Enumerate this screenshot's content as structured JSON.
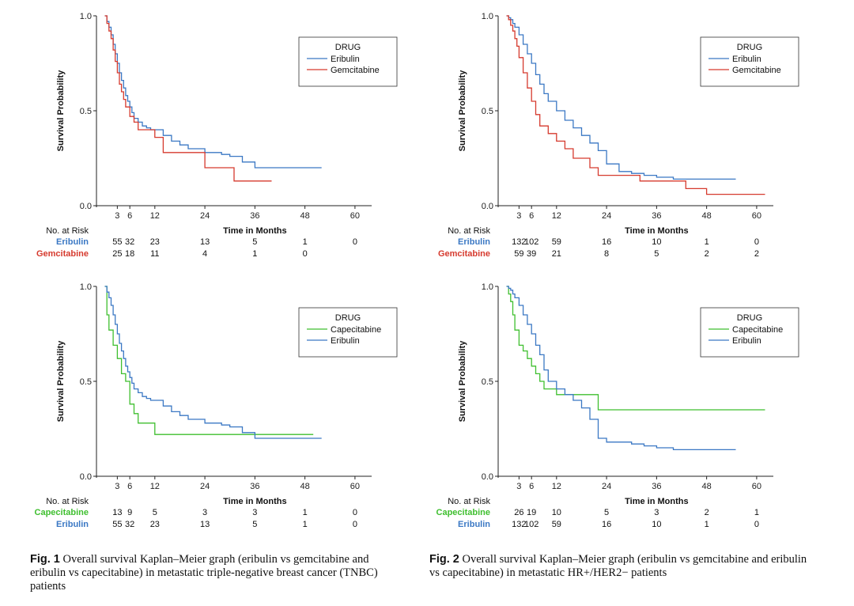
{
  "chart_data": [
    {
      "type": "line",
      "step": true,
      "ylabel": "Survival Probability",
      "xlabel": "Time in Months",
      "xticks": [
        "3",
        "6",
        "12",
        "24",
        "36",
        "48",
        "60"
      ],
      "yticks": [
        "0.0",
        "0.5",
        "1.0"
      ],
      "xlim": [
        0,
        60
      ],
      "ylim": [
        0,
        1
      ],
      "grid": false,
      "legend_position": "top-right",
      "legend_title": "DRUG",
      "series": [
        {
          "name": "Eribulin",
          "color": "#3b78c4",
          "x": [
            0,
            0.5,
            1,
            1.5,
            2,
            2.5,
            3,
            3.5,
            4,
            4.5,
            5,
            5.5,
            6,
            6.5,
            7,
            8,
            9,
            10,
            11,
            12,
            14,
            16,
            18,
            20,
            24,
            28,
            30,
            33,
            36,
            40,
            46,
            52
          ],
          "y": [
            1,
            0.97,
            0.94,
            0.9,
            0.85,
            0.8,
            0.75,
            0.7,
            0.66,
            0.62,
            0.58,
            0.55,
            0.52,
            0.49,
            0.46,
            0.44,
            0.42,
            0.41,
            0.4,
            0.4,
            0.37,
            0.34,
            0.32,
            0.3,
            0.28,
            0.27,
            0.26,
            0.23,
            0.2,
            0.2,
            0.2,
            0.2
          ]
        },
        {
          "name": "Gemcitabine",
          "color": "#d63a2e",
          "x": [
            0,
            0.5,
            1,
            1.5,
            2,
            2.5,
            3,
            3.5,
            4,
            4.5,
            5,
            6,
            7,
            8,
            9,
            12,
            14,
            24,
            28,
            30,
            31,
            36,
            40
          ],
          "y": [
            1,
            0.96,
            0.92,
            0.88,
            0.82,
            0.76,
            0.7,
            0.64,
            0.6,
            0.56,
            0.52,
            0.47,
            0.44,
            0.4,
            0.4,
            0.36,
            0.28,
            0.2,
            0.2,
            0.2,
            0.13,
            0.13,
            0.13
          ]
        }
      ],
      "risk_table": {
        "header": "No. at Risk",
        "rows": [
          {
            "label": "Eribulin",
            "color": "#3b78c4",
            "values": [
              "55",
              "32",
              "23",
              "13",
              "5",
              "1",
              "0"
            ]
          },
          {
            "label": "Gemcitabine",
            "color": "#d63a2e",
            "values": [
              "25",
              "18",
              "11",
              "4",
              "1",
              "0",
              ""
            ]
          }
        ]
      }
    },
    {
      "type": "line",
      "step": true,
      "ylabel": "Survival Probability",
      "xlabel": "Time in Months",
      "xticks": [
        "3",
        "6",
        "12",
        "24",
        "36",
        "48",
        "60"
      ],
      "yticks": [
        "0.0",
        "0.5",
        "1.0"
      ],
      "xlim": [
        0,
        60
      ],
      "ylim": [
        0,
        1
      ],
      "grid": false,
      "legend_position": "top-right",
      "legend_title": "DRUG",
      "series": [
        {
          "name": "Eribulin",
          "color": "#3b78c4",
          "x": [
            0,
            0.5,
            1,
            1.5,
            2,
            3,
            4,
            5,
            6,
            7,
            8,
            9,
            10,
            12,
            14,
            16,
            18,
            20,
            22,
            24,
            27,
            30,
            33,
            36,
            40,
            45,
            50,
            55
          ],
          "y": [
            1,
            0.99,
            0.98,
            0.96,
            0.94,
            0.9,
            0.85,
            0.8,
            0.75,
            0.69,
            0.64,
            0.59,
            0.55,
            0.5,
            0.45,
            0.41,
            0.37,
            0.33,
            0.29,
            0.22,
            0.18,
            0.17,
            0.16,
            0.15,
            0.14,
            0.14,
            0.14,
            0.14
          ]
        },
        {
          "name": "Gemcitabine",
          "color": "#d63a2e",
          "x": [
            0,
            0.5,
            1,
            1.5,
            2,
            2.5,
            3,
            4,
            5,
            6,
            7,
            8,
            10,
            12,
            14,
            16,
            18,
            20,
            22,
            24,
            30,
            32,
            36,
            40,
            43,
            48,
            55,
            62
          ],
          "y": [
            1,
            0.98,
            0.95,
            0.92,
            0.88,
            0.84,
            0.78,
            0.7,
            0.62,
            0.55,
            0.48,
            0.42,
            0.38,
            0.34,
            0.3,
            0.25,
            0.25,
            0.2,
            0.16,
            0.16,
            0.16,
            0.13,
            0.13,
            0.13,
            0.09,
            0.06,
            0.06,
            0.06
          ]
        }
      ],
      "risk_table": {
        "header": "No. at Risk",
        "rows": [
          {
            "label": "Eribulin",
            "color": "#3b78c4",
            "values": [
              "132",
              "102",
              "59",
              "16",
              "10",
              "1",
              "0"
            ]
          },
          {
            "label": "Gemcitabine",
            "color": "#d63a2e",
            "values": [
              "59",
              "39",
              "21",
              "8",
              "5",
              "2",
              "2"
            ]
          }
        ]
      }
    },
    {
      "type": "line",
      "step": true,
      "ylabel": "Survival Probability",
      "xlabel": "Time in Months",
      "xticks": [
        "3",
        "6",
        "12",
        "24",
        "36",
        "48",
        "60"
      ],
      "yticks": [
        "0.0",
        "0.5",
        "1.0"
      ],
      "xlim": [
        0,
        60
      ],
      "ylim": [
        0,
        1
      ],
      "grid": false,
      "legend_position": "top-right",
      "legend_title": "DRUG",
      "series": [
        {
          "name": "Capecitabine",
          "color": "#3fbf2f",
          "x": [
            0,
            0.5,
            1,
            2,
            3,
            4,
            5,
            6,
            7,
            8,
            12,
            14,
            20,
            36,
            40,
            48,
            50
          ],
          "y": [
            1,
            0.85,
            0.77,
            0.69,
            0.62,
            0.54,
            0.5,
            0.38,
            0.33,
            0.28,
            0.22,
            0.22,
            0.22,
            0.22,
            0.22,
            0.22,
            0.22
          ]
        },
        {
          "name": "Eribulin",
          "color": "#3b78c4",
          "x": [
            0,
            0.5,
            1,
            1.5,
            2,
            2.5,
            3,
            3.5,
            4,
            4.5,
            5,
            5.5,
            6,
            6.5,
            7,
            8,
            9,
            10,
            11,
            12,
            14,
            16,
            18,
            20,
            24,
            28,
            30,
            33,
            36,
            40,
            46,
            52
          ],
          "y": [
            1,
            0.97,
            0.94,
            0.9,
            0.85,
            0.8,
            0.75,
            0.7,
            0.66,
            0.62,
            0.58,
            0.55,
            0.52,
            0.49,
            0.46,
            0.44,
            0.42,
            0.41,
            0.4,
            0.4,
            0.37,
            0.34,
            0.32,
            0.3,
            0.28,
            0.27,
            0.26,
            0.23,
            0.2,
            0.2,
            0.2,
            0.2
          ]
        }
      ],
      "risk_table": {
        "header": "No. at Risk",
        "rows": [
          {
            "label": "Capecitabine",
            "color": "#3fbf2f",
            "values": [
              "13",
              "9",
              "5",
              "3",
              "3",
              "1",
              "0"
            ]
          },
          {
            "label": "Eribulin",
            "color": "#3b78c4",
            "values": [
              "55",
              "32",
              "23",
              "13",
              "5",
              "1",
              "0"
            ]
          }
        ]
      }
    },
    {
      "type": "line",
      "step": true,
      "ylabel": "Survival Probability",
      "xlabel": "Time in Months",
      "xticks": [
        "3",
        "6",
        "12",
        "24",
        "36",
        "48",
        "60"
      ],
      "yticks": [
        "0.0",
        "0.5",
        "1.0"
      ],
      "xlim": [
        0,
        60
      ],
      "ylim": [
        0,
        1
      ],
      "grid": false,
      "legend_position": "top-right",
      "legend_title": "DRUG",
      "series": [
        {
          "name": "Capecitabine",
          "color": "#3fbf2f",
          "x": [
            0,
            0.5,
            1,
            1.5,
            2,
            3,
            4,
            5,
            6,
            7,
            8,
            9,
            10,
            12,
            14,
            16,
            18,
            20,
            22,
            24,
            30,
            36,
            48,
            55,
            62
          ],
          "y": [
            1,
            0.96,
            0.92,
            0.85,
            0.77,
            0.69,
            0.66,
            0.62,
            0.58,
            0.54,
            0.5,
            0.46,
            0.46,
            0.43,
            0.43,
            0.43,
            0.43,
            0.43,
            0.35,
            0.35,
            0.35,
            0.35,
            0.35,
            0.35,
            0.35
          ]
        },
        {
          "name": "Eribulin",
          "color": "#3b78c4",
          "x": [
            0,
            0.5,
            1,
            1.5,
            2,
            3,
            4,
            5,
            6,
            7,
            8,
            9,
            10,
            12,
            14,
            16,
            18,
            20,
            22,
            24,
            27,
            30,
            33,
            36,
            40,
            45,
            50,
            55
          ],
          "y": [
            1,
            0.99,
            0.98,
            0.96,
            0.94,
            0.9,
            0.85,
            0.8,
            0.75,
            0.69,
            0.64,
            0.56,
            0.5,
            0.46,
            0.43,
            0.4,
            0.36,
            0.3,
            0.2,
            0.18,
            0.18,
            0.17,
            0.16,
            0.15,
            0.14,
            0.14,
            0.14,
            0.14
          ]
        }
      ],
      "risk_table": {
        "header": "No. at Risk",
        "rows": [
          {
            "label": "Capecitabine",
            "color": "#3fbf2f",
            "values": [
              "26",
              "19",
              "10",
              "5",
              "3",
              "2",
              "1"
            ]
          },
          {
            "label": "Eribulin",
            "color": "#3b78c4",
            "values": [
              "132",
              "102",
              "59",
              "16",
              "10",
              "1",
              "0"
            ]
          }
        ]
      }
    }
  ],
  "captions": {
    "fig1": {
      "label": "Fig. 1",
      "text": "Overall survival Kaplan–Meier graph (eribulin vs gemcitabine and eribulin vs capecitabine) in metastatic triple-negative breast cancer (TNBC) patients"
    },
    "fig2": {
      "label": "Fig. 2",
      "text": "Overall survival Kaplan–Meier graph (eribulin vs gemcitabine and eribulin vs capecitabine) in metastatic HR+/HER2− patients"
    }
  }
}
